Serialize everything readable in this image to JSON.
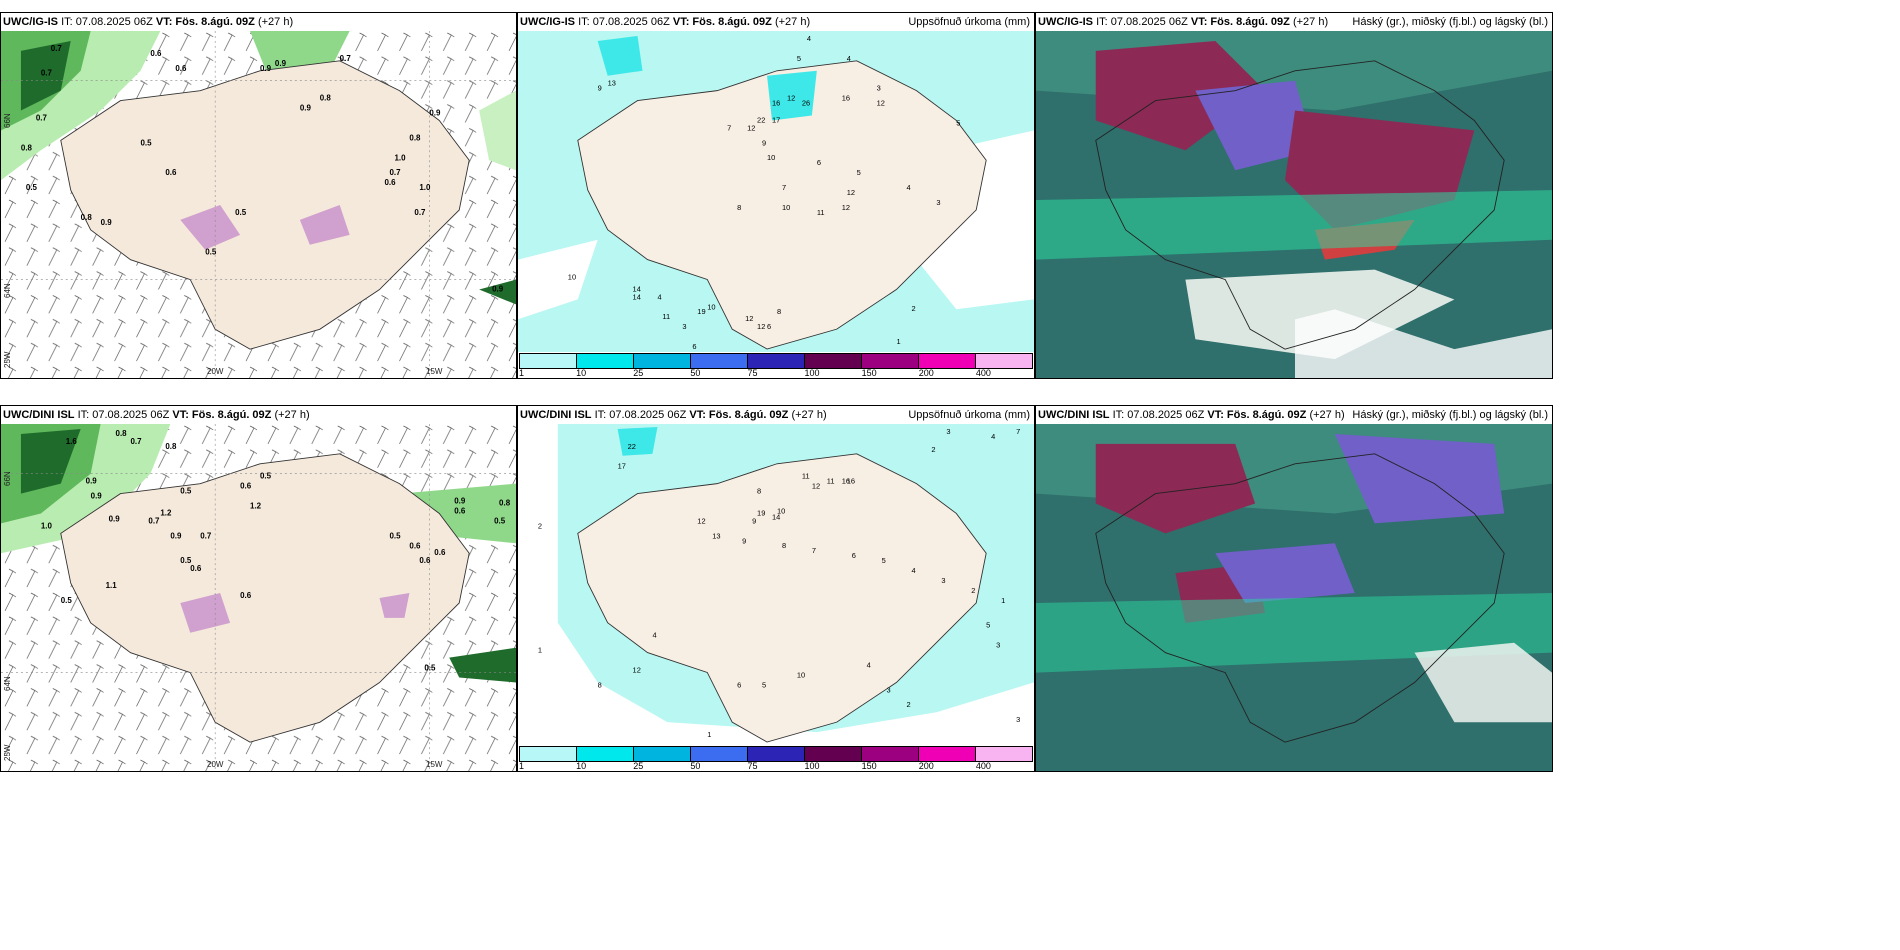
{
  "colors": {
    "land": "#f5e9dc",
    "sea": "#ffffff",
    "precip_light": "#b8f7f2",
    "precip_mid": "#3fe8e8",
    "cloud_low_green": "#2bd8a0",
    "cloud_high_red": "#9b2248",
    "cloud_mid_blue": "#7a5cd6"
  },
  "panels": [
    {
      "model": "UWC/IG-IS",
      "init": "IT: 07.08.2025 06Z",
      "valid_label": "VT:",
      "valid_time": "Fös. 8.ágú. 09Z",
      "lead": "(+27 h)",
      "title_right": ""
    },
    {
      "model": "UWC/IG-IS",
      "init": "IT: 07.08.2025 06Z",
      "valid_label": "VT:",
      "valid_time": "Fös. 8.ágú. 09Z",
      "lead": "(+27 h)",
      "title_right": "Uppsöfnuð úrkoma (mm)"
    },
    {
      "model": "UWC/IG-IS",
      "init": "IT: 07.08.2025 06Z",
      "valid_label": "VT:",
      "valid_time": "Fös. 8.ágú. 09Z",
      "lead": "(+27 h)",
      "title_right": "Háský (gr.), miðský (fj.bl.) og lágský (bl.)"
    },
    {
      "model": "UWC/DINI ISL",
      "init": "IT: 07.08.2025 06Z",
      "valid_label": "VT:",
      "valid_time": "Fös. 8.ágú. 09Z",
      "lead": "(+27 h)",
      "title_right": ""
    },
    {
      "model": "UWC/DINI ISL",
      "init": "IT: 07.08.2025 06Z",
      "valid_label": "VT:",
      "valid_time": "Fös. 8.ágú. 09Z",
      "lead": "(+27 h)",
      "title_right": "Uppsöfnuð úrkoma (mm)"
    },
    {
      "model": "UWC/DINI ISL",
      "init": "IT: 07.08.2025 06Z",
      "valid_label": "VT:",
      "valid_time": "Fös. 8.ágú. 09Z",
      "lead": "(+27 h)",
      "title_right": "Háský (gr.), miðský (fj.bl.) og lágský (bl.)"
    }
  ],
  "precip_colorbar": {
    "ticks": [
      "1",
      "10",
      "25",
      "50",
      "75",
      "100",
      "150",
      "200",
      "400"
    ],
    "colors": [
      "#b8f7f7",
      "#00e8ec",
      "#00b4e0",
      "#3c6cf0",
      "#2c24b4",
      "#640050",
      "#9c0080",
      "#f000b4",
      "#f8b4f0"
    ]
  },
  "axis_labels": {
    "lon_20w": "20W",
    "lon_15w": "15W",
    "lat_66n": "66N",
    "lat_64n": "64N",
    "lon_25w": "25W"
  },
  "wind_top_labels": [
    "0.7",
    "0.6",
    "0.7",
    "0.7",
    "0.8",
    "0.9",
    "0.7",
    "0.8",
    "0.5",
    "0.6",
    "0.5",
    "0.8",
    "0.9",
    "0.5",
    "0.5",
    "0.9",
    "0.7",
    "1.0",
    "0.7",
    "0.6",
    "1.0",
    "0.9",
    "0.8",
    "0.9",
    "0.6",
    "0.9"
  ],
  "wind_bottom_labels": [
    "1.6",
    "0.8",
    "0.7",
    "0.8",
    "1.2",
    "0.7",
    "0.9",
    "0.6",
    "0.5",
    "0.5",
    "0.9",
    "0.7",
    "1.2",
    "0.5",
    "0.6",
    "0.5",
    "0.6",
    "1.1",
    "0.9",
    "0.9",
    "0.5",
    "0.6",
    "0.6",
    "0.9",
    "0.6",
    "0.8",
    "0.5",
    "1.0",
    "0.5",
    "0.6"
  ],
  "precip_top_labels": [
    "4",
    "5",
    "4",
    "3",
    "5",
    "12",
    "16",
    "26",
    "16",
    "12",
    "11",
    "7",
    "22",
    "17",
    "12",
    "9",
    "10",
    "8",
    "7",
    "6",
    "5",
    "4",
    "3",
    "10",
    "12",
    "13",
    "9",
    "14",
    "11",
    "19",
    "10",
    "8",
    "6",
    "4",
    "3",
    "2",
    "1",
    "12",
    "10",
    "14",
    "6",
    "12",
    "12"
  ],
  "precip_bottom_labels": [
    "3",
    "2",
    "4",
    "7",
    "22",
    "17",
    "16",
    "11",
    "12",
    "16",
    "8",
    "10",
    "19",
    "14",
    "12",
    "13",
    "9",
    "8",
    "7",
    "6",
    "5",
    "4",
    "3",
    "2",
    "1",
    "10",
    "12",
    "8",
    "6",
    "5",
    "4",
    "3",
    "2",
    "1",
    "1",
    "11",
    "9",
    "4",
    "5",
    "3",
    "2",
    "3"
  ]
}
